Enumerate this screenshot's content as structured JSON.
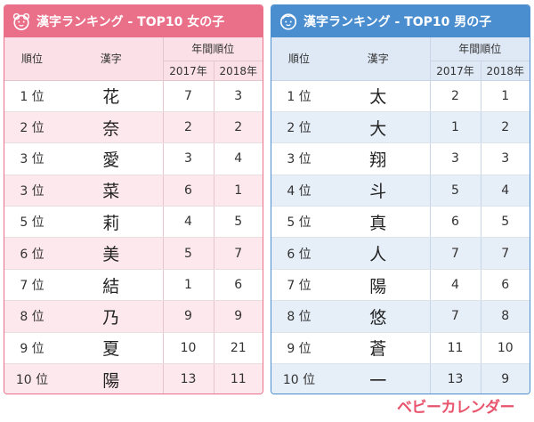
{
  "girls": {
    "title": "漢字ランキング - TOP10 女の子",
    "icon": "girl-face-icon",
    "color": "#ea6f89",
    "headers": {
      "rank": "順位",
      "kanji": "漢字",
      "yearly": "年間順位",
      "y2017": "2017年",
      "y2018": "2018年"
    },
    "rows": [
      {
        "rank": "1 位",
        "kanji": "花",
        "y2017": "7",
        "y2018": "3"
      },
      {
        "rank": "2 位",
        "kanji": "奈",
        "y2017": "2",
        "y2018": "2"
      },
      {
        "rank": "3 位",
        "kanji": "愛",
        "y2017": "3",
        "y2018": "4"
      },
      {
        "rank": "3 位",
        "kanji": "菜",
        "y2017": "6",
        "y2018": "1"
      },
      {
        "rank": "5 位",
        "kanji": "莉",
        "y2017": "4",
        "y2018": "5"
      },
      {
        "rank": "6 位",
        "kanji": "美",
        "y2017": "5",
        "y2018": "7"
      },
      {
        "rank": "7 位",
        "kanji": "結",
        "y2017": "1",
        "y2018": "6"
      },
      {
        "rank": "8 位",
        "kanji": "乃",
        "y2017": "9",
        "y2018": "9"
      },
      {
        "rank": "9 位",
        "kanji": "夏",
        "y2017": "10",
        "y2018": "21"
      },
      {
        "rank": "10 位",
        "kanji": "陽",
        "y2017": "13",
        "y2018": "11"
      }
    ]
  },
  "boys": {
    "title": "漢字ランキング - TOP10 男の子",
    "icon": "boy-face-icon",
    "color": "#4a8ed0",
    "headers": {
      "rank": "順位",
      "kanji": "漢字",
      "yearly": "年間順位",
      "y2017": "2017年",
      "y2018": "2018年"
    },
    "rows": [
      {
        "rank": "1 位",
        "kanji": "太",
        "y2017": "2",
        "y2018": "1"
      },
      {
        "rank": "2 位",
        "kanji": "大",
        "y2017": "1",
        "y2018": "2"
      },
      {
        "rank": "3 位",
        "kanji": "翔",
        "y2017": "3",
        "y2018": "3"
      },
      {
        "rank": "4 位",
        "kanji": "斗",
        "y2017": "5",
        "y2018": "4"
      },
      {
        "rank": "5 位",
        "kanji": "真",
        "y2017": "6",
        "y2018": "5"
      },
      {
        "rank": "6 位",
        "kanji": "人",
        "y2017": "7",
        "y2018": "7"
      },
      {
        "rank": "7 位",
        "kanji": "陽",
        "y2017": "4",
        "y2018": "6"
      },
      {
        "rank": "8 位",
        "kanji": "悠",
        "y2017": "7",
        "y2018": "8"
      },
      {
        "rank": "9 位",
        "kanji": "蒼",
        "y2017": "11",
        "y2018": "10"
      },
      {
        "rank": "10 位",
        "kanji": "一",
        "y2017": "13",
        "y2018": "9"
      }
    ]
  },
  "logo": {
    "text": "ベビーカレンダー",
    "color": "#e8546c"
  }
}
